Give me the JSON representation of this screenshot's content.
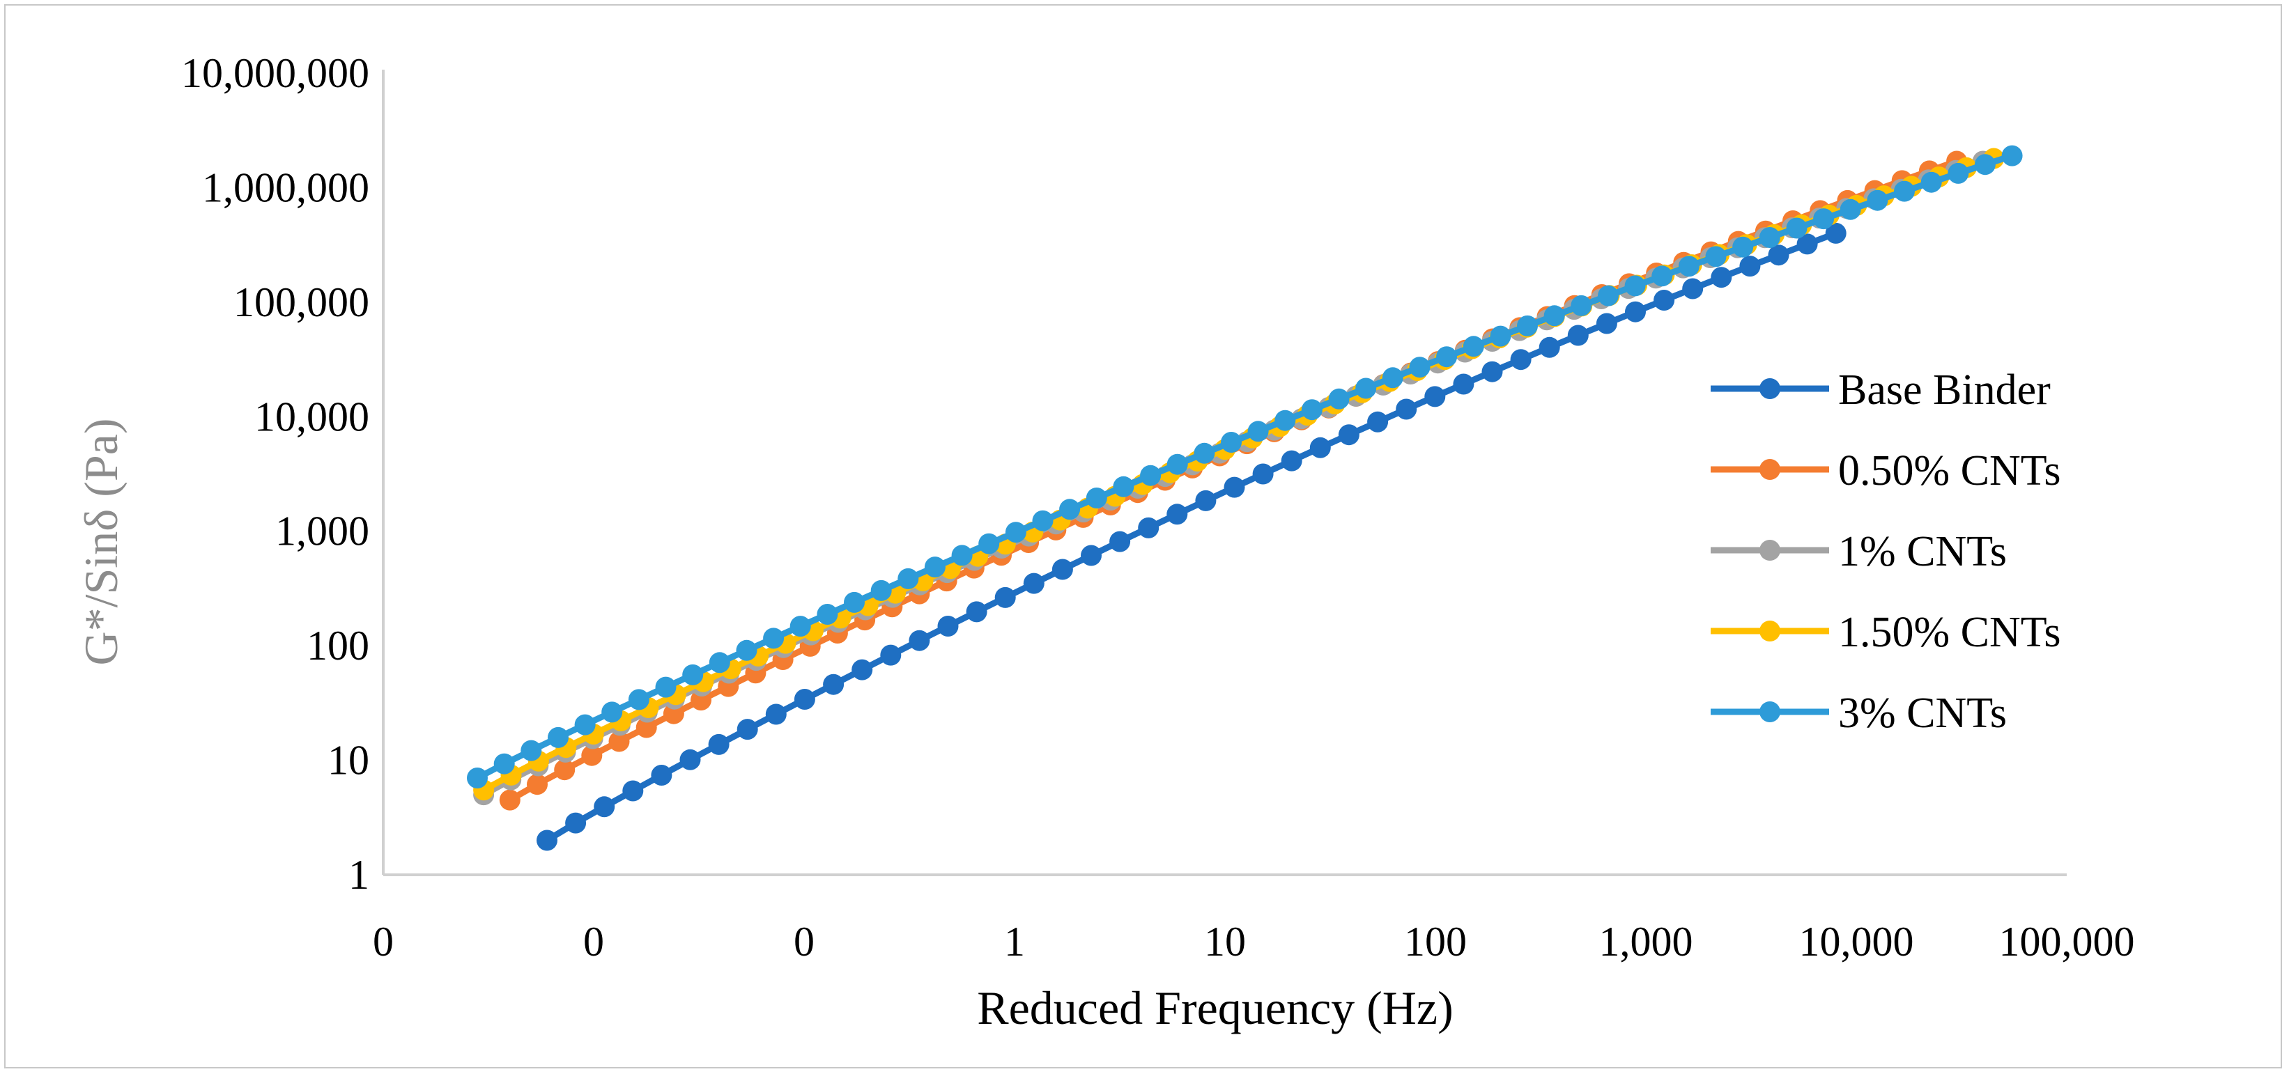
{
  "chart_data": {
    "type": "line",
    "title": "",
    "xlabel": "Reduced Frequency (Hz)",
    "ylabel": "G*/Sinδ (Pa)",
    "x_scale": "log",
    "y_scale": "log",
    "xlim": [
      0.001,
      100000
    ],
    "ylim": [
      1,
      10000000
    ],
    "x_ticks": [
      0.001,
      0.01,
      0.1,
      1,
      10,
      100,
      1000,
      10000,
      100000
    ],
    "x_tick_labels": [
      "0",
      "0",
      "0",
      "1",
      "10",
      "100",
      "1,000",
      "10,000",
      "100,000"
    ],
    "y_ticks": [
      1,
      10,
      100,
      1000,
      10000,
      100000,
      1000000,
      10000000
    ],
    "y_tick_labels": [
      "1",
      "10",
      "100",
      "1,000",
      "10,000",
      "100,000",
      "1,000,000",
      "10,000,000"
    ],
    "grid": false,
    "legend_position": "right",
    "series": [
      {
        "name": "Base Binder",
        "color": "#1f6fc2",
        "x_range": [
          0.006,
          8000
        ],
        "y_range": [
          2,
          400000
        ],
        "points": 46
      },
      {
        "name": "0.50% CNTs",
        "color": "#f47c30",
        "x_range": [
          0.004,
          30000
        ],
        "y_range": [
          4.5,
          1700000
        ],
        "points": 54
      },
      {
        "name": "1% CNTs",
        "color": "#a3a3a3",
        "x_range": [
          0.003,
          40000
        ],
        "y_range": [
          5,
          1700000
        ],
        "points": 56
      },
      {
        "name": "1.50% CNTs",
        "color": "#ffbf00",
        "x_range": [
          0.003,
          45000
        ],
        "y_range": [
          5.5,
          1800000
        ],
        "points": 56
      },
      {
        "name": "3% CNTs",
        "color": "#2e9bd8",
        "x_range": [
          0.0028,
          55000
        ],
        "y_range": [
          7,
          1900000
        ],
        "points": 58
      }
    ]
  },
  "colors": {
    "axis_line": "#d0d0d0",
    "ylabel_color": "#8c8c8c",
    "xlabel_color": "#000000"
  }
}
